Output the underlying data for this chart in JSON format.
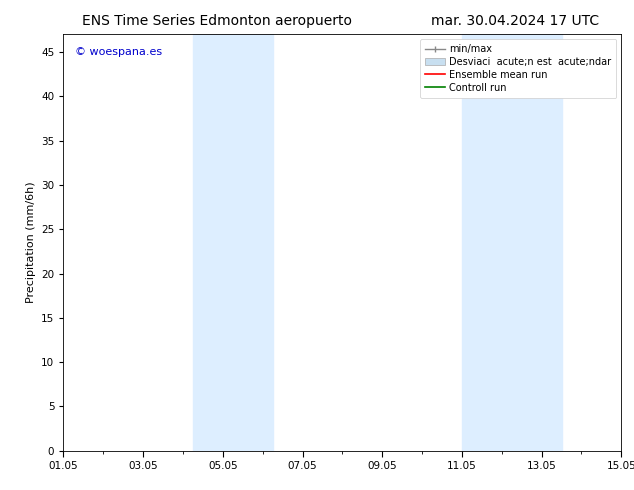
{
  "title_left": "ENS Time Series Edmonton aeropuerto",
  "title_right": "mar. 30.04.2024 17 UTC",
  "ylabel": "Precipitation (mm/6h)",
  "xlabel": "",
  "watermark": "© woespana.es",
  "ylim": [
    0,
    47
  ],
  "yticks": [
    0,
    5,
    10,
    15,
    20,
    25,
    30,
    35,
    40,
    45
  ],
  "xstart_days": 0,
  "xend_days": 14,
  "xtick_labels": [
    "01.05",
    "03.05",
    "05.05",
    "07.05",
    "09.05",
    "11.05",
    "13.05",
    "15.05"
  ],
  "xtick_positions": [
    0,
    2,
    4,
    6,
    8,
    10,
    12,
    14
  ],
  "shaded_regions": [
    {
      "xstart": 3.25,
      "xend": 5.25,
      "color": "#ddeeff"
    },
    {
      "xstart": 10.0,
      "xend": 12.5,
      "color": "#ddeeff"
    }
  ],
  "legend_labels": [
    "min/max",
    "Desviaci  acute;n est  acute;ndar",
    "Ensemble mean run",
    "Controll run"
  ],
  "legend_colors_line": [
    "#999999",
    "#c8dff0",
    "red",
    "green"
  ],
  "background_color": "#ffffff",
  "plot_bg_color": "#ffffff",
  "title_fontsize": 10,
  "axis_label_fontsize": 8,
  "tick_fontsize": 7.5,
  "watermark_color": "#0000cc",
  "watermark_fontsize": 8
}
